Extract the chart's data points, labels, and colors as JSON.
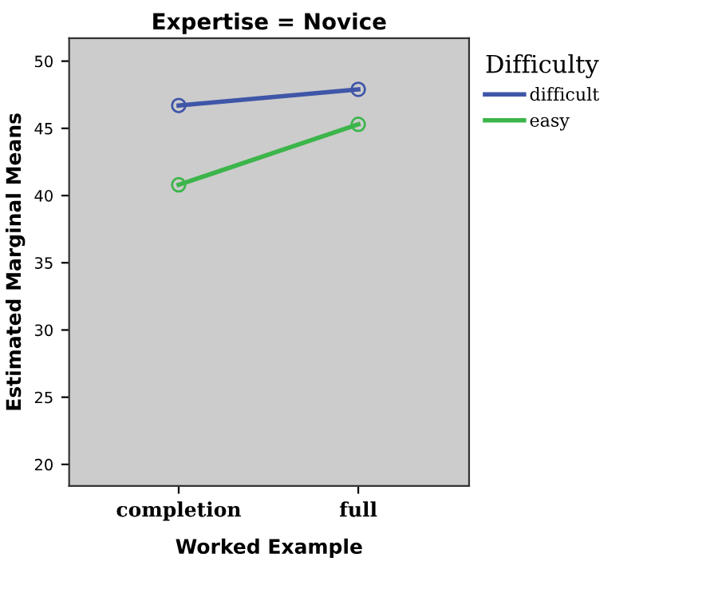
{
  "chart_data": {
    "type": "line",
    "title": "Expertise = Novice",
    "xlabel": "Worked Example",
    "ylabel": "Estimated Marginal Means",
    "legend_title": "Difficulty",
    "categories": [
      "completion",
      "full"
    ],
    "series": [
      {
        "name": "difficult",
        "color": "#3f56a8",
        "values": [
          46.7,
          47.9
        ]
      },
      {
        "name": "easy",
        "color": "#3cb54a",
        "values": [
          40.8,
          45.3
        ]
      }
    ],
    "ylim": [
      18.4,
      51.7
    ],
    "yticks": [
      20,
      25,
      30,
      35,
      40,
      45,
      50
    ],
    "grid": false,
    "legend": "right",
    "marker": "circle",
    "line_style": "solid"
  }
}
